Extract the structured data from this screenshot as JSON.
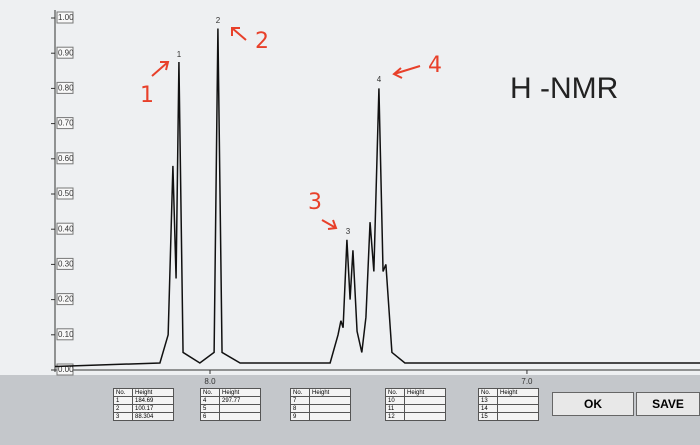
{
  "chart_data": {
    "type": "line",
    "xlim": [
      8.489,
      6.454
    ],
    "ylim": [
      0,
      1
    ],
    "xticks": [
      {
        "value": 8,
        "label": "8.0"
      },
      {
        "value": 7,
        "label": "7.0"
      }
    ],
    "yticks": [
      {
        "value": 1,
        "label": "1.00"
      },
      {
        "value": 0.9,
        "label": "0.90"
      },
      {
        "value": 0.8,
        "label": "0.80"
      },
      {
        "value": 0.7,
        "label": "0.70"
      },
      {
        "value": 0.6,
        "label": "0.60"
      },
      {
        "value": 0.5,
        "label": "0.50"
      },
      {
        "value": 0.4,
        "label": "0.40"
      },
      {
        "value": 0.3,
        "label": "0.30"
      },
      {
        "value": 0.2,
        "label": "0.20"
      },
      {
        "value": 0.1,
        "label": "0.10"
      },
      {
        "value": 0,
        "label": "0.00"
      }
    ],
    "series": [
      {
        "color": "#111111",
        "x": [
          8.489,
          8.158,
          8.132,
          8.117,
          8.107,
          8.098,
          8.085,
          8.032,
          7.987,
          7.975,
          7.962,
          7.905,
          7.621,
          7.596,
          7.587,
          7.58,
          7.568,
          7.558,
          7.549,
          7.536,
          7.521,
          7.508,
          7.495,
          7.483,
          7.467,
          7.454,
          7.445,
          7.426,
          7.385,
          6.454
        ],
        "values": [
          0.01,
          0.02,
          0.1,
          0.58,
          0.26,
          0.875,
          0.05,
          0.02,
          0.05,
          0.97,
          0.05,
          0.02,
          0.02,
          0.1,
          0.14,
          0.12,
          0.37,
          0.2,
          0.34,
          0.11,
          0.05,
          0.15,
          0.42,
          0.28,
          0.8,
          0.28,
          0.3,
          0.05,
          0.02,
          0.02
        ]
      }
    ],
    "peak_labels": [
      "1",
      "2",
      "3",
      "4"
    ],
    "annotations": [
      "1",
      "2",
      "3",
      "4",
      "H -NMR"
    ]
  },
  "tables": [
    {
      "header": [
        "No.",
        "Height"
      ],
      "rows": [
        [
          "1",
          "184.69"
        ],
        [
          "2",
          "100.17"
        ],
        [
          "3",
          "88.304"
        ]
      ]
    },
    {
      "header": [
        "No.",
        "Height"
      ],
      "rows": [
        [
          "4",
          "297.77"
        ],
        [
          "5"
        ],
        [
          "6"
        ]
      ]
    },
    {
      "header": [
        "No.",
        "Height"
      ],
      "rows": [
        [
          "7"
        ],
        [
          "8"
        ],
        [
          "9"
        ]
      ]
    },
    {
      "header": [
        "No.",
        "Height"
      ],
      "rows": [
        [
          "10"
        ],
        [
          "11"
        ],
        [
          "12"
        ]
      ]
    },
    {
      "header": [
        "No.",
        "Height"
      ],
      "rows": [
        [
          "13"
        ],
        [
          "14"
        ],
        [
          "15"
        ]
      ]
    }
  ],
  "buttons": [
    "OK",
    "SAVE"
  ]
}
